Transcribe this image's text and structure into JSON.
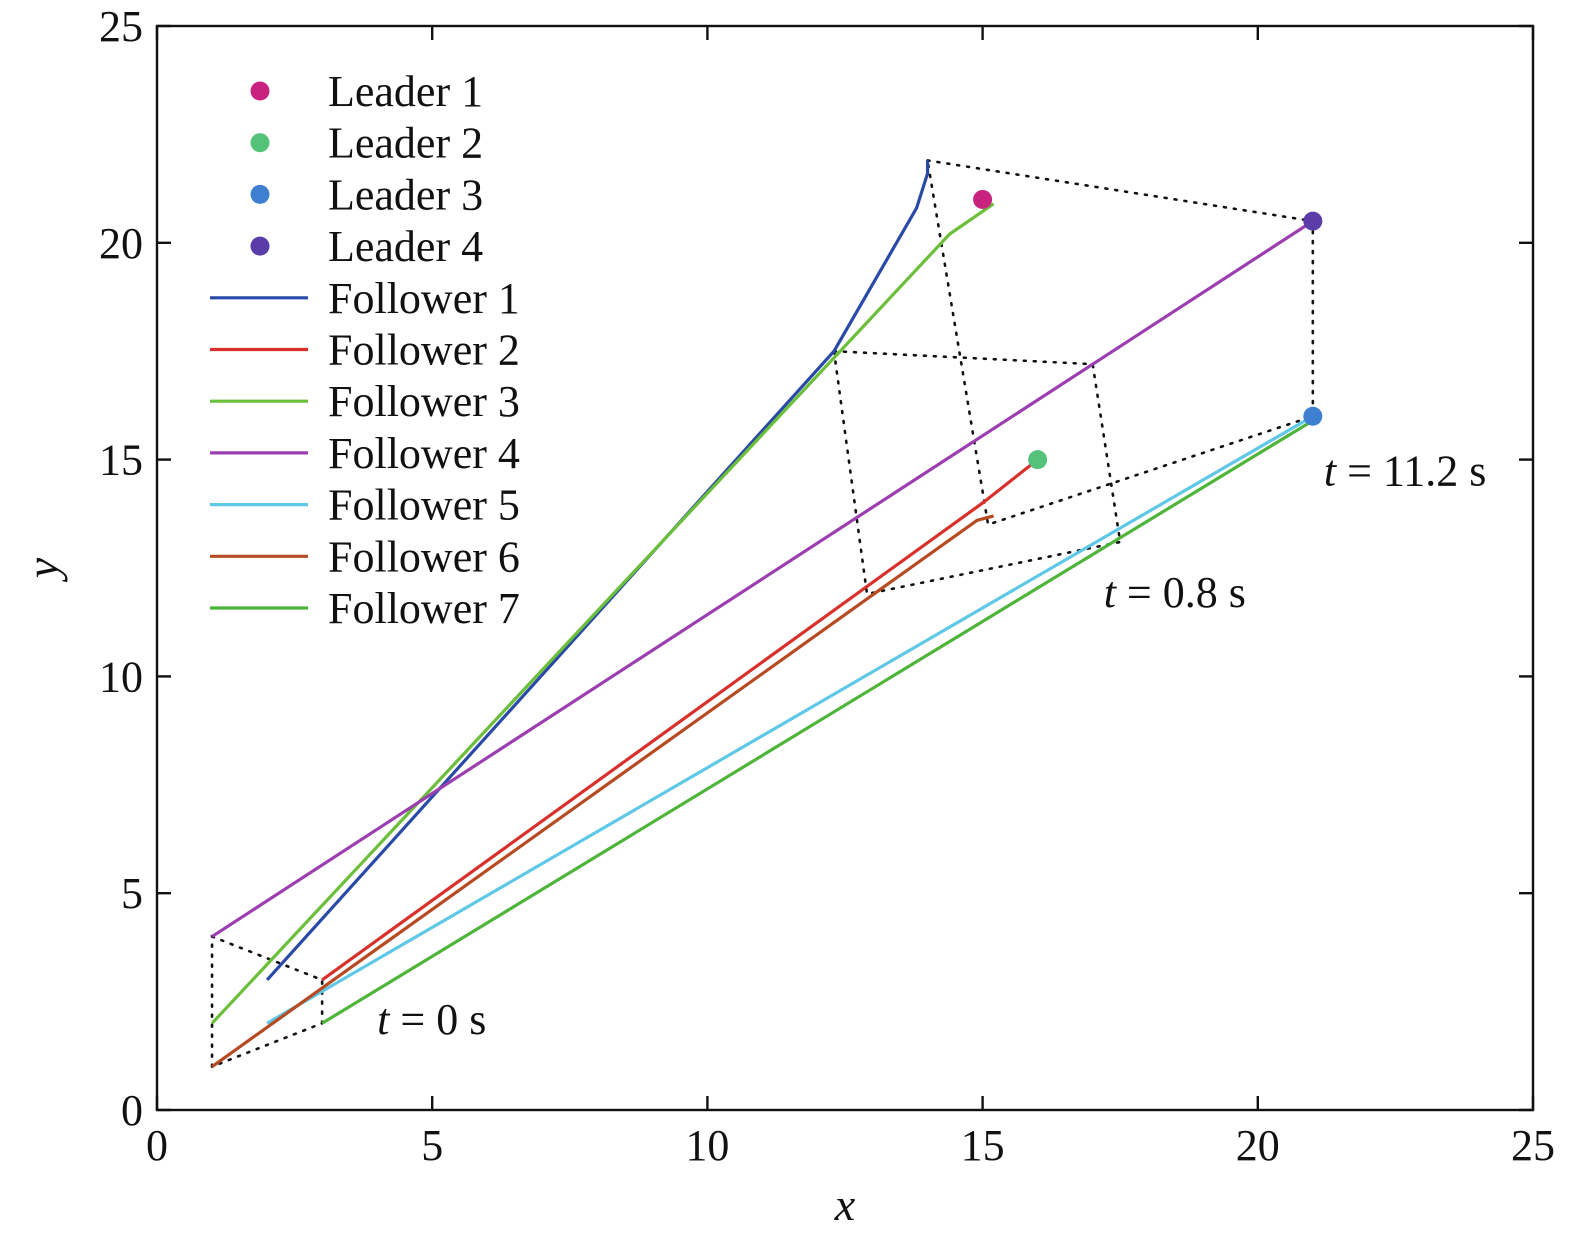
{
  "chart_data": {
    "type": "line",
    "xlabel": "x",
    "ylabel": "y",
    "xlim": [
      0,
      25
    ],
    "ylim": [
      0,
      25
    ],
    "xticks": [
      0,
      5,
      10,
      15,
      20,
      25
    ],
    "yticks": [
      0,
      5,
      10,
      15,
      20,
      25
    ],
    "grid": false,
    "legend_placement": "top-left",
    "leaders": [
      {
        "name": "Leader 1",
        "x": 15,
        "y": 21,
        "color": "#c8237f"
      },
      {
        "name": "Leader 2",
        "x": 16,
        "y": 15,
        "color": "#55c27a"
      },
      {
        "name": "Leader 3",
        "x": 21,
        "y": 16,
        "color": "#3f7fd2"
      },
      {
        "name": "Leader 4",
        "x": 21,
        "y": 20.5,
        "color": "#5a3da8"
      }
    ],
    "series": [
      {
        "name": "Follower 1",
        "color": "#2a4aa8",
        "x": [
          2,
          12.3,
          13.8,
          14,
          14
        ],
        "y": [
          3,
          17.5,
          20.8,
          21.6,
          21.9
        ]
      },
      {
        "name": "Follower 2",
        "color": "#d9302c",
        "x": [
          3,
          15,
          16
        ],
        "y": [
          3,
          14,
          15
        ]
      },
      {
        "name": "Follower 3",
        "color": "#6cbf3a",
        "x": [
          1,
          14.4,
          15.2
        ],
        "y": [
          2,
          20.2,
          20.9
        ]
      },
      {
        "name": "Follower 4",
        "color": "#9b3fb0",
        "x": [
          1,
          21
        ],
        "y": [
          4,
          20.5
        ]
      },
      {
        "name": "Follower 5",
        "color": "#5fc8e6",
        "x": [
          2,
          21
        ],
        "y": [
          2,
          16
        ]
      },
      {
        "name": "Follower 6",
        "color": "#b84a22",
        "x": [
          1,
          14.9,
          15.2
        ],
        "y": [
          1,
          13.6,
          13.7
        ]
      },
      {
        "name": "Follower 7",
        "color": "#4fb53a",
        "x": [
          3,
          21
        ],
        "y": [
          2,
          15.9
        ]
      }
    ],
    "formations": [
      {
        "label": "t = 0 s",
        "points": [
          [
            1,
            4
          ],
          [
            3,
            3
          ],
          [
            3,
            2
          ],
          [
            1,
            1
          ]
        ],
        "label_at": [
          4,
          1.75
        ]
      },
      {
        "label": "t = 0.8 s",
        "points": [
          [
            12.3,
            17.5
          ],
          [
            17,
            17.2
          ],
          [
            17.5,
            13.1
          ],
          [
            12.9,
            11.9
          ]
        ],
        "label_at": [
          17.2,
          11.6
        ]
      },
      {
        "label": "t = 11.2 s",
        "points": [
          [
            14,
            21.9
          ],
          [
            21,
            20.5
          ],
          [
            21,
            16
          ],
          [
            15.1,
            13.5
          ]
        ],
        "label_at": [
          21.2,
          14.4
        ]
      }
    ]
  }
}
